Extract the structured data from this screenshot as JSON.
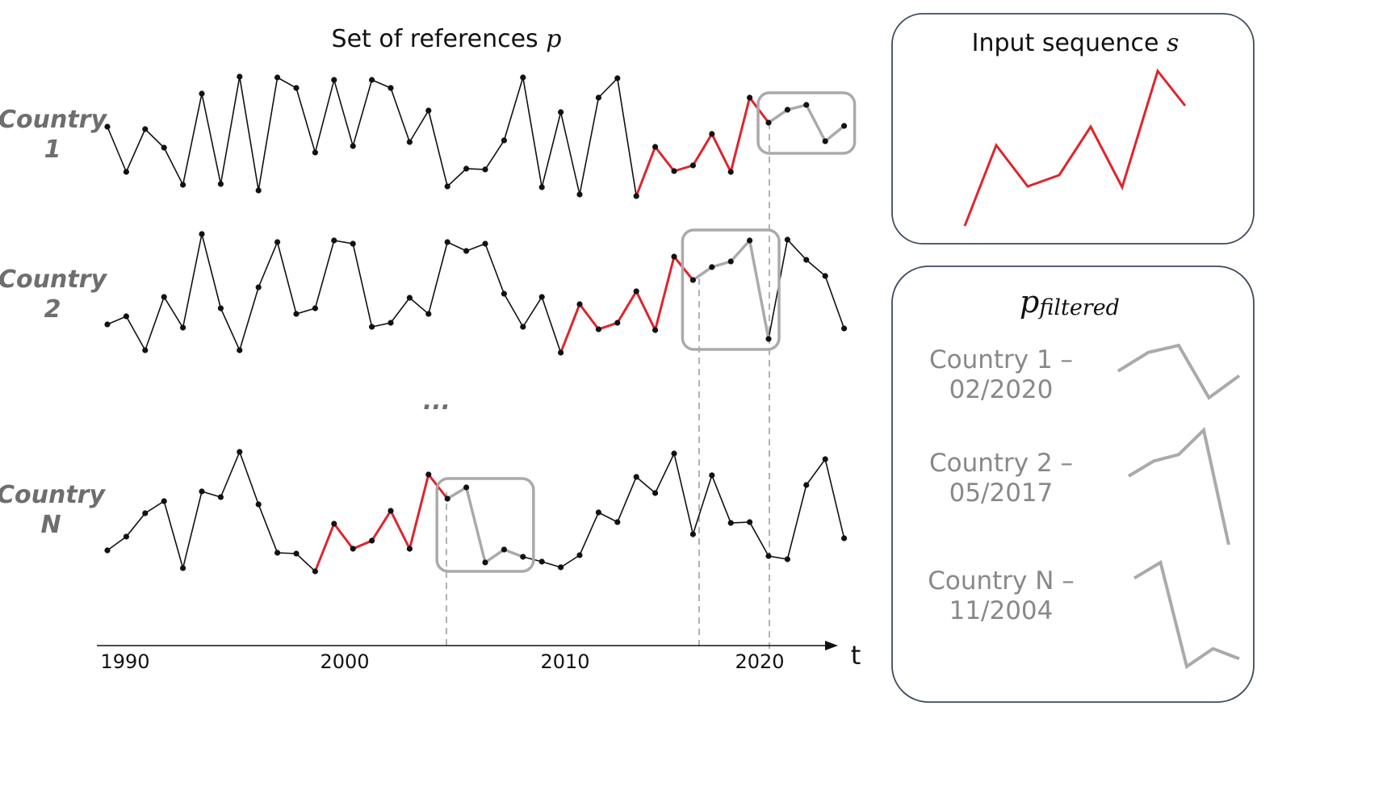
{
  "title": {
    "text": "Set of references ",
    "var": "p"
  },
  "input_panel": {
    "title": "Input sequence ",
    "var": "s"
  },
  "filtered_panel": {
    "title_base": "p",
    "title_sub": "filtered"
  },
  "ellipsis": "...",
  "axis": {
    "ticks": [
      "1990",
      "2000",
      "2010",
      "2020"
    ],
    "label": "t"
  },
  "colors": {
    "series": "#111111",
    "match": "#e0242c",
    "highlight": "#aaaaaa",
    "panel_border": "#3d4a5c"
  },
  "countries": [
    {
      "label_line1": "Country",
      "label_line2": "1",
      "y": [
        157,
        213,
        160,
        183,
        229,
        116,
        228,
        95,
        236,
        96,
        109,
        189,
        99,
        181,
        99,
        109,
        176,
        137,
        231,
        209,
        210,
        174,
        96,
        232,
        139,
        241,
        121,
        97,
        243,
        182,
        212,
        205,
        166,
        213,
        121,
        152,
        136,
        130,
        175,
        156
      ],
      "match_start": 28,
      "match_end": 35,
      "box_start": 35,
      "box_end": 39
    },
    {
      "label_line1": "Country",
      "label_line2": "2",
      "y": [
        402,
        392,
        434,
        368,
        406,
        290,
        382,
        434,
        356,
        300,
        389,
        382,
        298,
        302,
        405,
        400,
        369,
        389,
        300,
        311,
        302,
        364,
        405,
        368,
        437,
        377,
        408,
        400,
        361,
        409,
        318,
        347,
        331,
        324,
        298,
        420,
        297,
        322,
        342,
        407
      ],
      "match_start": 24,
      "match_end": 31,
      "box_start": 31,
      "box_end": 35
    },
    {
      "label_line1": "Country",
      "label_line2": "N",
      "y": [
        682,
        665,
        636,
        621,
        704,
        609,
        616,
        560,
        625,
        685,
        686,
        708,
        649,
        680,
        670,
        633,
        680,
        588,
        618,
        604,
        697,
        681,
        690,
        696,
        703,
        688,
        635,
        647,
        591,
        611,
        562,
        662,
        589,
        648,
        647,
        689,
        693,
        601,
        569,
        667
      ],
      "match_start": 11,
      "match_end": 18,
      "box_start": 18,
      "box_end": 22
    }
  ],
  "input_sequence": [
    {
      "x": 1195,
      "y": 280
    },
    {
      "x": 1234,
      "y": 180
    },
    {
      "x": 1273,
      "y": 231
    },
    {
      "x": 1312,
      "y": 217
    },
    {
      "x": 1351,
      "y": 157
    },
    {
      "x": 1390,
      "y": 232
    },
    {
      "x": 1434,
      "y": 88
    },
    {
      "x": 1468,
      "y": 131
    }
  ],
  "filtered": [
    {
      "label_line1": "Country 1 –",
      "label_line2": "02/2020"
    },
    {
      "label_line1": "Country 2 –",
      "label_line2": "05/2017"
    },
    {
      "label_line1": "Country N –",
      "label_line2": "11/2004"
    }
  ]
}
